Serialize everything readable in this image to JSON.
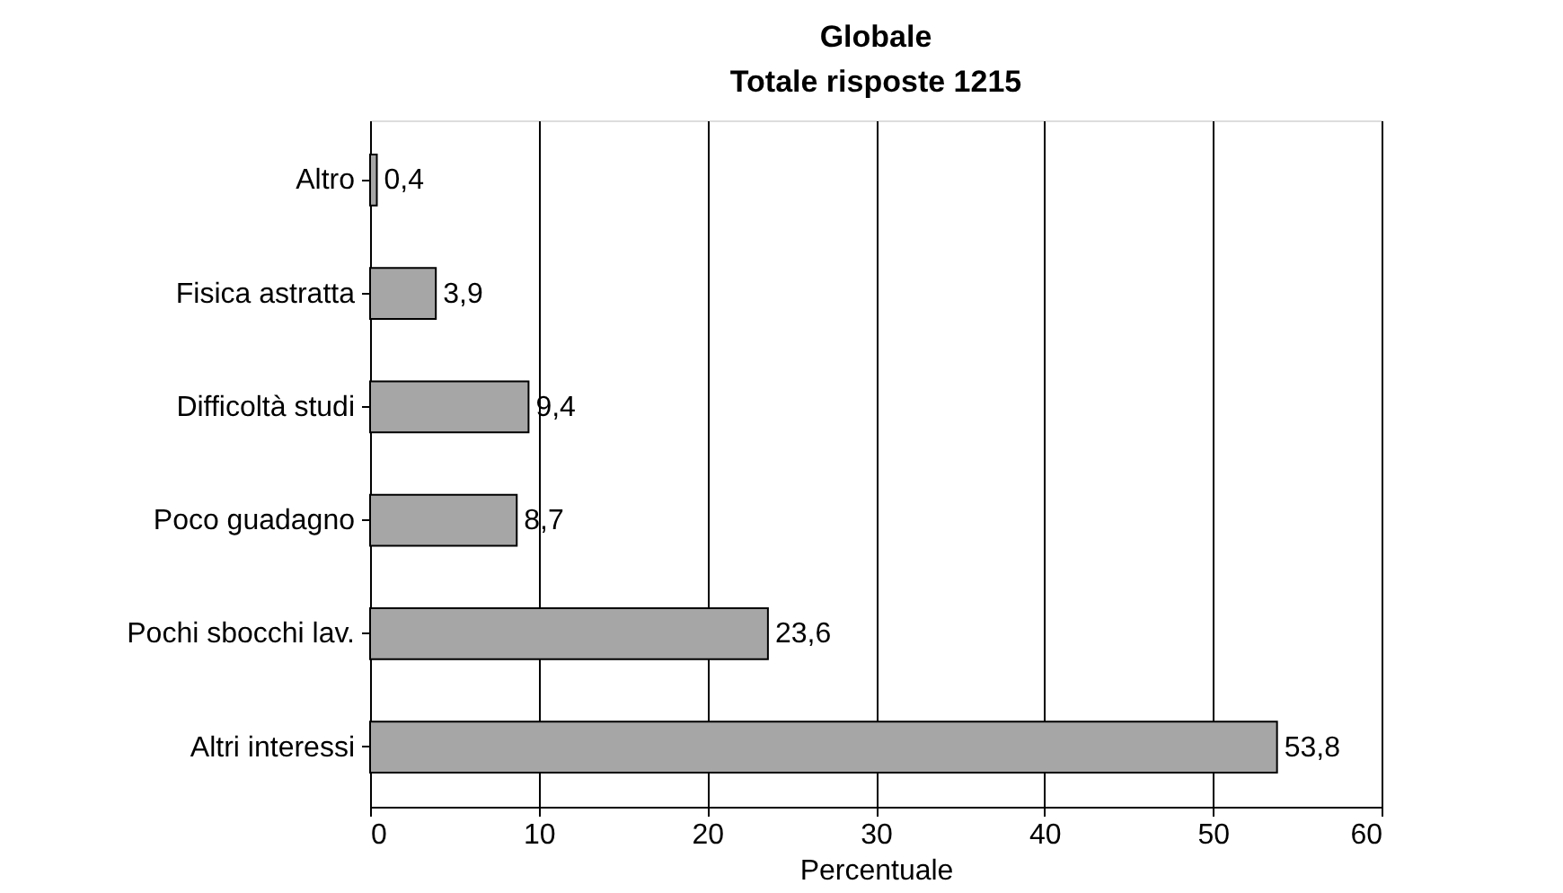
{
  "chart_data": {
    "type": "bar",
    "orientation": "horizontal",
    "title": "Globale",
    "subtitle": "Totale risposte 1215",
    "xlabel": "Percentuale",
    "categories": [
      "Altro",
      "Fisica astratta",
      "Difficoltà studi",
      "Poco guadagno",
      "Pochi sbocchi lav.",
      "Altri interessi"
    ],
    "values": [
      0.4,
      3.9,
      9.4,
      8.7,
      23.6,
      53.8
    ],
    "value_labels": [
      "0,4",
      "3,9",
      "9,4",
      "8,7",
      "23,6",
      "53,8"
    ],
    "color": "#a6a6a6",
    "xlim": [
      0,
      60
    ],
    "xticks": [
      0,
      10,
      20,
      30,
      40,
      50,
      60
    ],
    "grid": "x"
  }
}
